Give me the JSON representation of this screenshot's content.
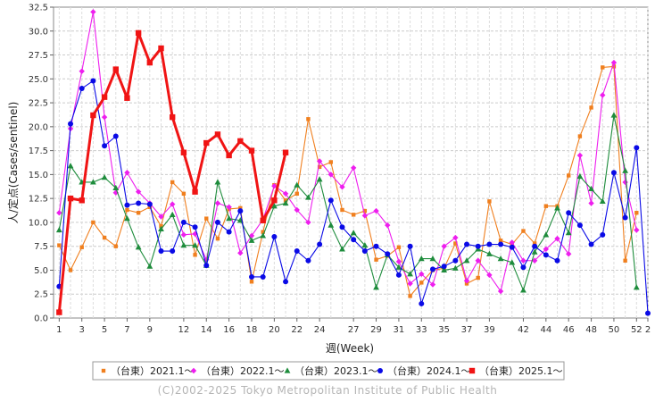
{
  "chart_data": {
    "type": "line",
    "xlabel": "週(Week)",
    "ylabel": "人/定点(Cases/sentinel)",
    "ylim": [
      0,
      32.5
    ],
    "yticks": [
      "0.0",
      "2.5",
      "5.0",
      "7.5",
      "10.0",
      "12.5",
      "15.0",
      "17.5",
      "20.0",
      "22.5",
      "25.0",
      "27.5",
      "30.0",
      "32.5"
    ],
    "xlim": [
      0.5,
      53
    ],
    "xticks": [
      "1",
      "3",
      "5",
      "7",
      "9",
      "12",
      "14",
      "16",
      "18",
      "20",
      "22",
      "24",
      "27",
      "29",
      "31",
      "33",
      "35",
      "37",
      "39",
      "42",
      "44",
      "46",
      "48",
      "50",
      "52",
      "2"
    ],
    "grid": true,
    "legend_position": "bottom",
    "series": [
      {
        "name": "（台東）2021.1～",
        "color": "#f07f1e",
        "marker": "square-small",
        "values": [
          7.6,
          5.0,
          7.4,
          10.0,
          8.4,
          7.5,
          11.3,
          11.0,
          11.6,
          9.6,
          14.2,
          13.0,
          6.6,
          10.4,
          8.3,
          11.4,
          11.5,
          3.8,
          9.0,
          13.9,
          12.3,
          13.0,
          20.8,
          15.8,
          16.3,
          11.3,
          10.8,
          11.2,
          6.1,
          6.5,
          7.4,
          2.3,
          3.7,
          5.0,
          5.2,
          7.8,
          3.6,
          4.2,
          12.2,
          8.1,
          7.7,
          9.1,
          7.8,
          11.7,
          11.7,
          14.9,
          19.0,
          22.0,
          26.2,
          26.3,
          6.0,
          11.0
        ]
      },
      {
        "name": "（台東）2022.1～",
        "color": "#ee1eee",
        "marker": "diamond",
        "values": [
          11.0,
          19.8,
          25.8,
          32.0,
          21.0,
          13.1,
          15.2,
          13.2,
          12.0,
          10.6,
          11.9,
          8.7,
          8.8,
          6.1,
          12.0,
          11.6,
          6.8,
          8.6,
          10.3,
          13.8,
          13.0,
          11.3,
          10.0,
          16.4,
          15.0,
          13.7,
          15.7,
          10.7,
          11.2,
          9.7,
          5.9,
          3.6,
          4.6,
          3.5,
          7.5,
          8.4,
          3.9,
          6.0,
          4.5,
          2.8,
          7.9,
          6.0,
          6.0,
          7.2,
          8.3,
          6.7,
          17.0,
          12.0,
          23.3,
          26.7,
          14.2,
          9.2
        ]
      },
      {
        "name": "（台東）2023.1～",
        "color": "#1e8c3c",
        "marker": "triangle",
        "values": [
          9.2,
          15.9,
          14.2,
          14.2,
          14.7,
          13.6,
          10.4,
          7.4,
          5.4,
          9.3,
          10.8,
          7.6,
          7.6,
          5.5,
          14.2,
          10.4,
          10.2,
          8.1,
          8.6,
          11.7,
          12.0,
          13.9,
          12.6,
          14.5,
          9.7,
          7.2,
          8.9,
          7.6,
          3.2,
          6.6,
          5.3,
          4.6,
          6.2,
          6.2,
          5.0,
          5.2,
          6.0,
          7.2,
          6.7,
          6.2,
          5.8,
          2.9,
          6.9,
          8.7,
          11.5,
          8.9,
          14.8,
          13.5,
          12.2,
          21.2,
          15.4,
          3.2
        ]
      },
      {
        "name": "（台東）2024.1～",
        "color": "#0a0ae6",
        "marker": "circle",
        "values": [
          3.3,
          20.3,
          24.0,
          24.8,
          18.0,
          19.0,
          11.8,
          12.0,
          11.9,
          7.0,
          7.0,
          10.0,
          9.5,
          5.5,
          10.0,
          9.0,
          11.2,
          4.3,
          4.3,
          8.5,
          3.8,
          7.0,
          6.0,
          7.7,
          12.3,
          9.5,
          8.2,
          7.0,
          7.5,
          6.7,
          4.5,
          7.5,
          1.5,
          5.1,
          5.4,
          6.0,
          7.7,
          7.5,
          7.7,
          7.7,
          7.4,
          5.3,
          7.5,
          6.6,
          6.0,
          11.0,
          9.7,
          7.7,
          8.7,
          15.2,
          10.5,
          17.8,
          0.5
        ]
      },
      {
        "name": "（台東）2025.1～",
        "color": "#f01414",
        "marker": "square-large",
        "values": [
          0.6,
          12.5,
          12.3,
          21.2,
          23.1,
          26.0,
          23.0,
          29.8,
          26.7,
          28.2,
          21.0,
          17.3,
          13.2,
          18.3,
          19.2,
          17.0,
          18.5,
          17.5,
          10.2,
          12.3,
          17.3
        ]
      }
    ],
    "copyright": "(C)2002-2025 Tokyo Metropolitan Institute of Public Health"
  }
}
